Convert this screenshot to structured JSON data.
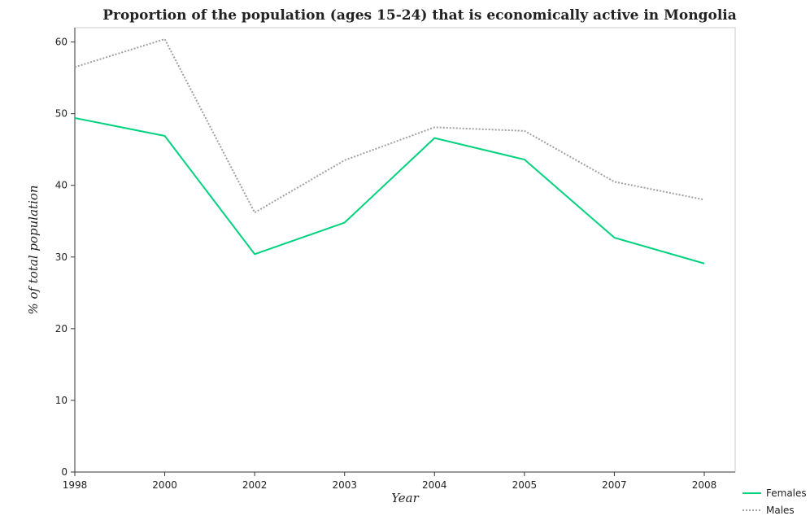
{
  "chart_data": {
    "type": "line",
    "title": "Proportion of the population (ages 15-24) that is economically active in Mongolia",
    "xlabel": "Year",
    "ylabel": "% of total population",
    "categories": [
      "1998",
      "2000",
      "2002",
      "2003",
      "2004",
      "2005",
      "2007",
      "2008"
    ],
    "ylim": [
      0,
      62
    ],
    "yticks": [
      0,
      10,
      20,
      30,
      40,
      50,
      60
    ],
    "grid": false,
    "legend_position": "bottom-right",
    "series": [
      {
        "name": "Females",
        "color": "#00d27f",
        "dash": "solid",
        "values": [
          49.4,
          46.9,
          30.4,
          34.8,
          46.6,
          43.6,
          32.7,
          29.1
        ]
      },
      {
        "name": "Males",
        "color": "#a0a0a0",
        "dash": "dotted",
        "values": [
          56.5,
          60.4,
          36.2,
          43.5,
          48.1,
          47.6,
          40.5,
          38.0
        ]
      }
    ]
  }
}
